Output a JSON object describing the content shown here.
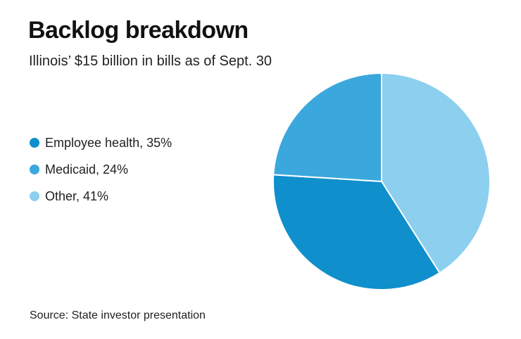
{
  "chart_data": {
    "type": "pie",
    "title": "Backlog breakdown",
    "subtitle": "Illinois’ $15 billion in bills as of Sept. 30",
    "source": "Source: State investor presentation",
    "slices": [
      {
        "name": "Employee health",
        "value": 35,
        "legend_label": "Employee health, 35%",
        "color": "#0f8fcc"
      },
      {
        "name": "Medicaid",
        "value": 24,
        "legend_label": "Medicaid, 24%",
        "color": "#3aa8dd"
      },
      {
        "name": "Other",
        "value": 41,
        "legend_label": "Other, 41%",
        "color": "#8ccfee"
      }
    ],
    "legend_position": "left"
  }
}
